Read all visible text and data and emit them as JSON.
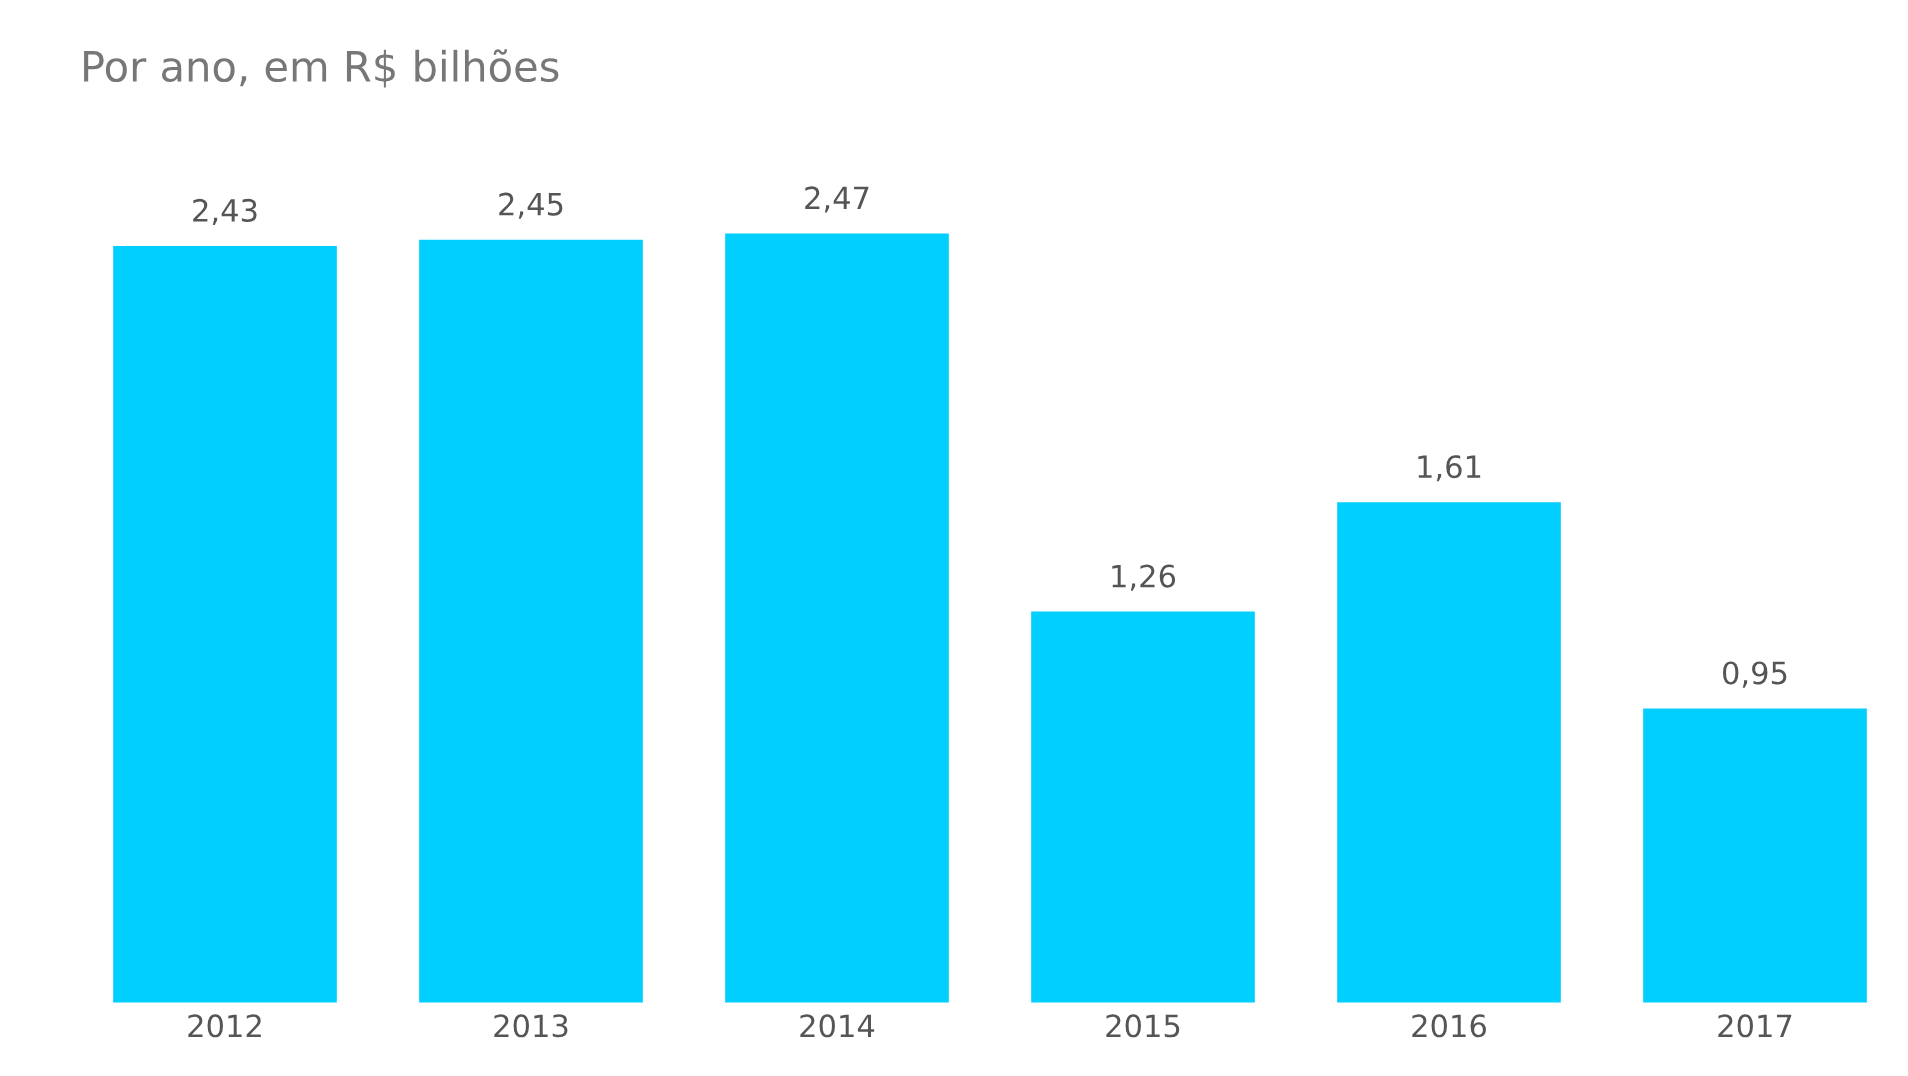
{
  "chart_data": {
    "type": "bar",
    "title": "Por ano, em R$ bilhões",
    "categories": [
      "2012",
      "2013",
      "2014",
      "2015",
      "2016",
      "2017"
    ],
    "values": [
      2.43,
      2.45,
      2.47,
      1.26,
      1.61,
      0.95
    ],
    "value_labels": [
      "2,43",
      "2,45",
      "2,47",
      "1,26",
      "1,61",
      "0,95"
    ],
    "color": "#00cfff",
    "tick_labels": "x",
    "grid": false,
    "legend": false
  }
}
